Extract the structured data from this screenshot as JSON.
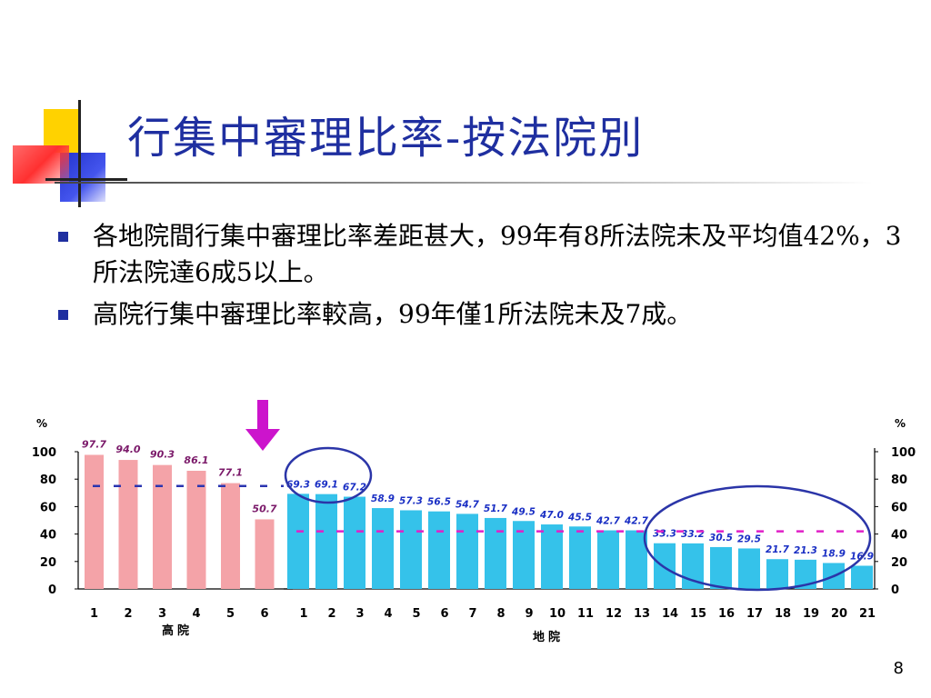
{
  "slide": {
    "title": "行集中審理比率-按法院別",
    "bullets": [
      "各地院間行集中審理比率差距甚大，99年有8所法院未及平均值42%，3所法院達6成5以上。",
      "高院行集中審理比率較高，99年僅1所法院未及7成。"
    ],
    "page_number": "8"
  },
  "colors": {
    "title": "#1f2fa0",
    "bullet_marker": "#1f2fa0",
    "high_court_bar": "#f4a3a8",
    "district_court_bar": "#35c2ea",
    "high_court_label": "#7b1a6a",
    "district_court_label": "#1a2fc4",
    "high_avg_line": "#2b35b0",
    "district_avg_line": "#e020c8",
    "circle": "#2b35a8",
    "arrow": "#cc14cc"
  },
  "chart_data": {
    "type": "bar",
    "left_panel": {
      "xlabel": "高院",
      "ylabel": "%",
      "categories": [
        "1",
        "2",
        "3",
        "4",
        "5",
        "6"
      ],
      "values": [
        97.7,
        94.0,
        90.3,
        86.1,
        77.1,
        50.7
      ],
      "value_labels": [
        "97.7",
        "94.0",
        "90.3",
        "86.1",
        "77.1",
        "50.7"
      ],
      "average_line": 75,
      "ylim": [
        0,
        100
      ],
      "yticks": [
        "0",
        "20",
        "40",
        "60",
        "80",
        "100"
      ]
    },
    "right_panel": {
      "xlabel": "地院",
      "ylabel": "%",
      "categories": [
        "1",
        "2",
        "3",
        "4",
        "5",
        "6",
        "7",
        "8",
        "9",
        "10",
        "11",
        "12",
        "13",
        "14",
        "15",
        "16",
        "17",
        "18",
        "19",
        "20",
        "21"
      ],
      "values": [
        69.3,
        69.1,
        67.2,
        58.9,
        57.3,
        56.5,
        54.7,
        51.7,
        49.5,
        47.0,
        45.5,
        42.7,
        42.7,
        33.3,
        33.2,
        30.5,
        29.5,
        21.7,
        21.3,
        18.9,
        16.9
      ],
      "value_labels": [
        "69.3",
        "69.1",
        "67.2",
        "58.9",
        "57.3",
        "56.5",
        "54.7",
        "51.7",
        "49.5",
        "47.0",
        "45.5",
        "42.7",
        "42.7",
        "33.3",
        "33.2",
        "30.5",
        "29.5",
        "21.7",
        "21.3",
        "18.9",
        "16.9"
      ],
      "average_line": 42,
      "ylim": [
        0,
        100
      ],
      "yticks": [
        "0",
        "20",
        "40",
        "60",
        "80",
        "100"
      ]
    },
    "grid": false
  }
}
